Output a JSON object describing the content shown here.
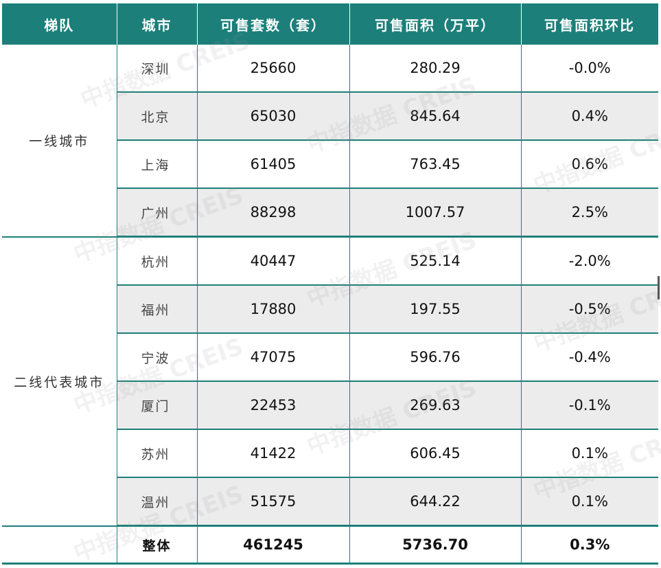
{
  "columns": [
    "梯队",
    "城市",
    "可售套数（套）",
    "可售面积（万平）",
    "可售面积环比"
  ],
  "tiers": [
    {
      "label": "一线城市",
      "rows": [
        {
          "city": "深圳",
          "units": "25660",
          "area": "280.29",
          "mom": "-0.0%",
          "trend": "zero"
        },
        {
          "city": "北京",
          "units": "65030",
          "area": "845.64",
          "mom": "0.4%",
          "trend": "pos"
        },
        {
          "city": "上海",
          "units": "61405",
          "area": "763.45",
          "mom": "0.6%",
          "trend": "pos"
        },
        {
          "city": "广州",
          "units": "88298",
          "area": "1007.57",
          "mom": "2.5%",
          "trend": "pos"
        }
      ]
    },
    {
      "label": "二线代表城市",
      "rows": [
        {
          "city": "杭州",
          "units": "40447",
          "area": "525.14",
          "mom": "-2.0%",
          "trend": "neg"
        },
        {
          "city": "福州",
          "units": "17880",
          "area": "197.55",
          "mom": "-0.5%",
          "trend": "neg"
        },
        {
          "city": "宁波",
          "units": "47075",
          "area": "596.76",
          "mom": "-0.4%",
          "trend": "neg"
        },
        {
          "city": "厦门",
          "units": "22453",
          "area": "269.63",
          "mom": "-0.1%",
          "trend": "neg"
        },
        {
          "city": "苏州",
          "units": "41422",
          "area": "606.45",
          "mom": "0.1%",
          "trend": "pos"
        },
        {
          "city": "温州",
          "units": "51575",
          "area": "644.22",
          "mom": "0.1%",
          "trend": "pos"
        }
      ]
    }
  ],
  "total": {
    "label": "整体",
    "units": "461245",
    "area": "5736.70",
    "mom": "0.3%",
    "trend": "pos"
  },
  "watermark": "中指数据 CREIS",
  "colors": {
    "header_bg": "#1c7f7a",
    "shade": "#ececec",
    "positive": "#2aa84a",
    "negative": "#e0201d"
  }
}
